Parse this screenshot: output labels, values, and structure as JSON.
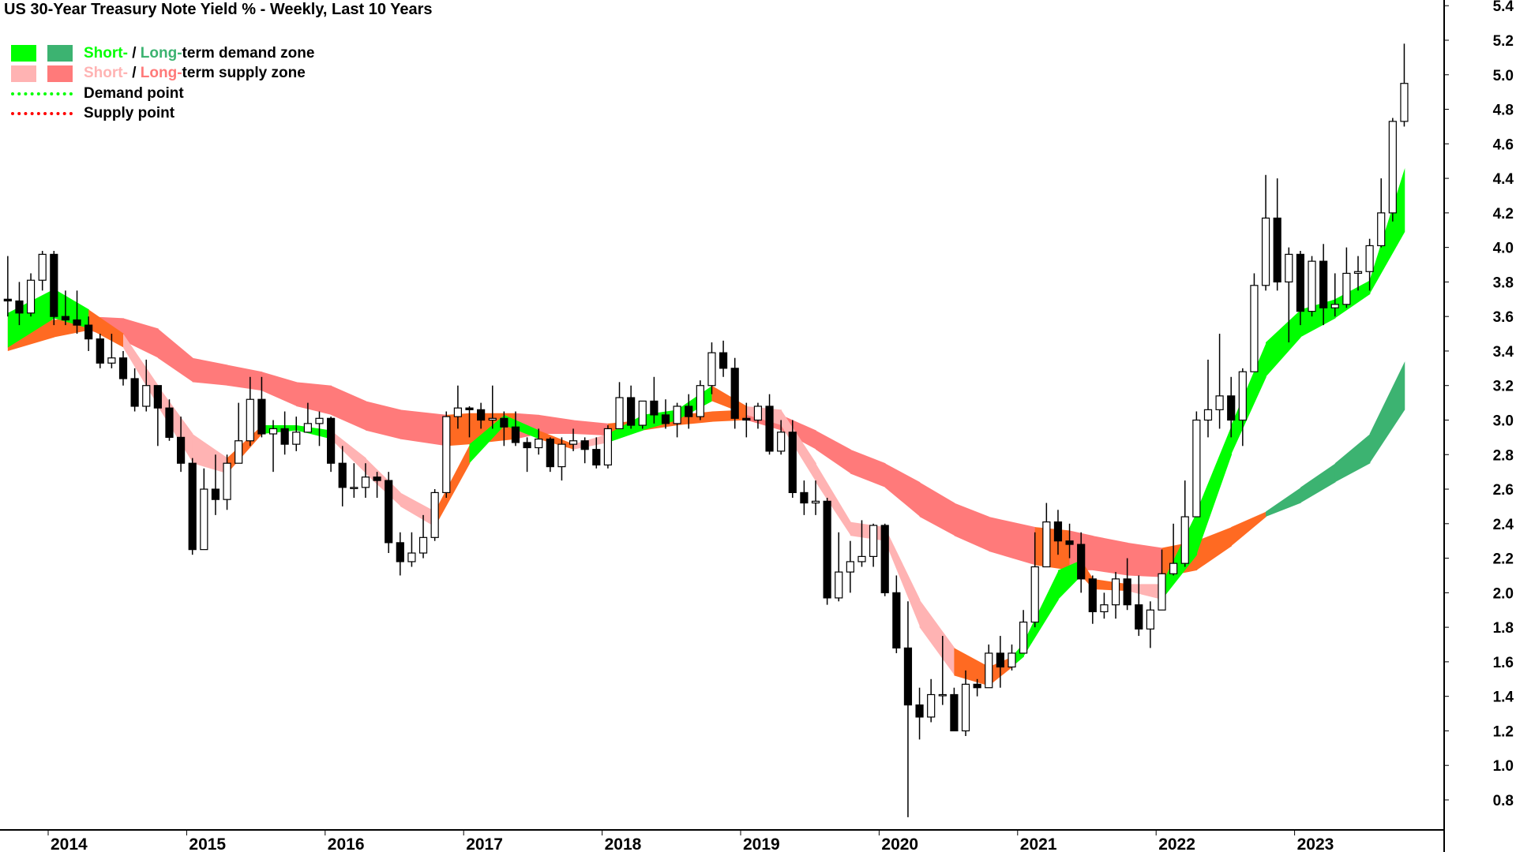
{
  "chart_data": {
    "type": "candlestick",
    "title": "US 30-Year Treasury Note Yield % - Weekly, Last 10 Years",
    "ylim": [
      0.6,
      5.4
    ],
    "yticks": [
      "0.8",
      "1.0",
      "1.2",
      "1.4",
      "1.6",
      "1.8",
      "2.0",
      "2.2",
      "2.4",
      "2.6",
      "2.8",
      "3.0",
      "3.2",
      "3.4",
      "3.6",
      "3.8",
      "4.0",
      "4.2",
      "4.4",
      "4.6",
      "4.8",
      "5.0",
      "5.2",
      "5.4"
    ],
    "xticks": [
      "2014",
      "2015",
      "2016",
      "2017",
      "2018",
      "2019",
      "2020",
      "2021",
      "2022",
      "2023"
    ],
    "grid": false,
    "legend_position": "top-left",
    "legend": {
      "demand_zone": {
        "short": "Short-",
        "sep": " / ",
        "long": "Long-",
        "rest": "term demand zone"
      },
      "supply_zone": {
        "short": "Short-",
        "sep": " / ",
        "long": "Long-",
        "rest": "term supply zone"
      },
      "demand_point": "Demand point",
      "supply_point": "Supply point"
    },
    "colors": {
      "short_demand": "#00ff00",
      "long_demand": "#3cb371",
      "short_supply": "#ffb3b3",
      "long_supply": "#ff7a7a",
      "neutral": "#ff6a22",
      "demand_point": "#00ff00",
      "supply_point": "#ff0000",
      "candle": "#000000"
    },
    "start_month": "2013-09",
    "ohlc": [
      [
        3.7,
        3.95,
        3.6,
        3.69
      ],
      [
        3.69,
        3.8,
        3.55,
        3.62
      ],
      [
        3.62,
        3.85,
        3.6,
        3.81
      ],
      [
        3.81,
        3.98,
        3.75,
        3.96
      ],
      [
        3.96,
        3.98,
        3.55,
        3.6
      ],
      [
        3.6,
        3.75,
        3.55,
        3.58
      ],
      [
        3.58,
        3.75,
        3.5,
        3.55
      ],
      [
        3.55,
        3.6,
        3.4,
        3.47
      ],
      [
        3.47,
        3.5,
        3.3,
        3.33
      ],
      [
        3.33,
        3.5,
        3.3,
        3.36
      ],
      [
        3.36,
        3.4,
        3.2,
        3.24
      ],
      [
        3.24,
        3.3,
        3.05,
        3.08
      ],
      [
        3.08,
        3.35,
        3.05,
        3.2
      ],
      [
        3.2,
        3.2,
        2.85,
        3.07
      ],
      [
        3.07,
        3.12,
        2.88,
        2.9
      ],
      [
        2.9,
        3.02,
        2.7,
        2.75
      ],
      [
        2.75,
        2.78,
        2.22,
        2.25
      ],
      [
        2.25,
        2.72,
        2.25,
        2.6
      ],
      [
        2.6,
        2.8,
        2.45,
        2.54
      ],
      [
        2.54,
        2.8,
        2.48,
        2.75
      ],
      [
        2.75,
        3.1,
        2.75,
        2.88
      ],
      [
        2.88,
        3.25,
        2.85,
        3.12
      ],
      [
        3.12,
        3.25,
        2.9,
        2.92
      ],
      [
        2.92,
        3.0,
        2.7,
        2.95
      ],
      [
        2.95,
        3.05,
        2.8,
        2.86
      ],
      [
        2.86,
        3.02,
        2.82,
        2.93
      ],
      [
        2.93,
        3.1,
        2.93,
        2.98
      ],
      [
        2.98,
        3.05,
        2.85,
        3.01
      ],
      [
        3.01,
        3.02,
        2.7,
        2.75
      ],
      [
        2.75,
        2.85,
        2.5,
        2.61
      ],
      [
        2.61,
        2.75,
        2.55,
        2.61
      ],
      [
        2.61,
        2.75,
        2.55,
        2.67
      ],
      [
        2.67,
        2.7,
        2.55,
        2.65
      ],
      [
        2.65,
        2.7,
        2.23,
        2.29
      ],
      [
        2.29,
        2.35,
        2.1,
        2.18
      ],
      [
        2.18,
        2.35,
        2.15,
        2.23
      ],
      [
        2.23,
        2.45,
        2.2,
        2.32
      ],
      [
        2.32,
        2.6,
        2.3,
        2.58
      ],
      [
        2.58,
        3.05,
        2.55,
        3.02
      ],
      [
        3.02,
        3.2,
        2.95,
        3.07
      ],
      [
        3.07,
        3.08,
        2.9,
        3.06
      ],
      [
        3.06,
        3.1,
        2.95,
        3.0
      ],
      [
        3.0,
        3.2,
        2.95,
        3.01
      ],
      [
        3.01,
        3.05,
        2.85,
        2.96
      ],
      [
        2.96,
        3.05,
        2.85,
        2.87
      ],
      [
        2.87,
        2.9,
        2.7,
        2.84
      ],
      [
        2.84,
        2.95,
        2.8,
        2.89
      ],
      [
        2.89,
        2.9,
        2.7,
        2.73
      ],
      [
        2.73,
        2.9,
        2.65,
        2.86
      ],
      [
        2.86,
        2.95,
        2.82,
        2.88
      ],
      [
        2.88,
        2.9,
        2.75,
        2.83
      ],
      [
        2.83,
        2.9,
        2.72,
        2.74
      ],
      [
        2.74,
        2.97,
        2.72,
        2.95
      ],
      [
        2.95,
        3.22,
        2.95,
        3.13
      ],
      [
        3.13,
        3.2,
        2.95,
        2.97
      ],
      [
        2.97,
        3.1,
        2.95,
        3.11
      ],
      [
        3.11,
        3.25,
        2.98,
        3.03
      ],
      [
        3.03,
        3.12,
        2.95,
        2.98
      ],
      [
        2.98,
        3.1,
        2.9,
        3.08
      ],
      [
        3.08,
        3.15,
        2.95,
        3.02
      ],
      [
        3.02,
        3.23,
        3.0,
        3.2
      ],
      [
        3.2,
        3.45,
        3.15,
        3.39
      ],
      [
        3.39,
        3.46,
        3.25,
        3.3
      ],
      [
        3.3,
        3.36,
        2.95,
        3.01
      ],
      [
        3.01,
        3.1,
        2.9,
        3.0
      ],
      [
        3.0,
        3.1,
        2.95,
        3.08
      ],
      [
        3.08,
        3.15,
        2.8,
        2.82
      ],
      [
        2.82,
        3.0,
        2.8,
        2.93
      ],
      [
        2.93,
        3.0,
        2.55,
        2.58
      ],
      [
        2.58,
        2.65,
        2.45,
        2.52
      ],
      [
        2.52,
        2.65,
        2.45,
        2.53
      ],
      [
        2.53,
        2.55,
        1.93,
        1.97
      ],
      [
        1.97,
        2.35,
        1.95,
        2.12
      ],
      [
        2.12,
        2.3,
        2.0,
        2.18
      ],
      [
        2.18,
        2.42,
        2.15,
        2.21
      ],
      [
        2.21,
        2.4,
        2.15,
        2.39
      ],
      [
        2.39,
        2.4,
        1.98,
        2.0
      ],
      [
        2.0,
        2.1,
        1.65,
        1.68
      ],
      [
        1.68,
        1.95,
        0.7,
        1.35
      ],
      [
        1.35,
        1.45,
        1.15,
        1.28
      ],
      [
        1.28,
        1.5,
        1.25,
        1.41
      ],
      [
        1.41,
        1.75,
        1.35,
        1.41
      ],
      [
        1.41,
        1.45,
        1.2,
        1.2
      ],
      [
        1.2,
        1.55,
        1.17,
        1.47
      ],
      [
        1.47,
        1.5,
        1.4,
        1.45
      ],
      [
        1.45,
        1.7,
        1.45,
        1.65
      ],
      [
        1.65,
        1.75,
        1.45,
        1.57
      ],
      [
        1.57,
        1.7,
        1.55,
        1.65
      ],
      [
        1.65,
        1.9,
        1.65,
        1.83
      ],
      [
        1.83,
        2.35,
        1.8,
        2.15
      ],
      [
        2.15,
        2.52,
        2.15,
        2.41
      ],
      [
        2.41,
        2.48,
        2.22,
        2.3
      ],
      [
        2.3,
        2.4,
        2.2,
        2.28
      ],
      [
        2.28,
        2.35,
        2.0,
        2.08
      ],
      [
        2.08,
        2.1,
        1.82,
        1.89
      ],
      [
        1.89,
        2.0,
        1.85,
        1.93
      ],
      [
        1.93,
        2.12,
        1.85,
        2.08
      ],
      [
        2.08,
        2.2,
        1.9,
        1.93
      ],
      [
        1.93,
        2.1,
        1.75,
        1.79
      ],
      [
        1.79,
        1.95,
        1.68,
        1.9
      ],
      [
        1.9,
        2.25,
        1.9,
        2.11
      ],
      [
        2.11,
        2.4,
        2.1,
        2.17
      ],
      [
        2.17,
        2.65,
        2.15,
        2.44
      ],
      [
        2.44,
        3.05,
        2.44,
        3.0
      ],
      [
        3.0,
        3.35,
        2.9,
        3.06
      ],
      [
        3.06,
        3.5,
        2.95,
        3.14
      ],
      [
        3.14,
        3.25,
        2.9,
        3.0
      ],
      [
        3.0,
        3.3,
        2.85,
        3.28
      ],
      [
        3.28,
        3.85,
        3.28,
        3.78
      ],
      [
        3.78,
        4.42,
        3.75,
        4.17
      ],
      [
        4.17,
        4.4,
        3.75,
        3.8
      ],
      [
        3.8,
        4.0,
        3.45,
        3.96
      ],
      [
        3.96,
        3.98,
        3.55,
        3.63
      ],
      [
        3.63,
        3.95,
        3.6,
        3.92
      ],
      [
        3.92,
        4.02,
        3.55,
        3.65
      ],
      [
        3.65,
        3.85,
        3.6,
        3.67
      ],
      [
        3.67,
        4.0,
        3.65,
        3.85
      ],
      [
        3.85,
        3.95,
        3.75,
        3.86
      ],
      [
        3.86,
        4.05,
        3.75,
        4.01
      ],
      [
        4.01,
        4.4,
        4.0,
        4.2
      ],
      [
        4.2,
        4.75,
        4.15,
        4.73
      ],
      [
        4.73,
        5.18,
        4.7,
        4.95
      ]
    ],
    "short_zone": [
      {
        "d": "2013-09",
        "hi": 3.62,
        "lo": 3.42,
        "state": "demand"
      },
      {
        "d": "2014-01",
        "hi": 3.76,
        "lo": 3.59,
        "state": "demand"
      },
      {
        "d": "2014-04",
        "hi": 3.64,
        "lo": 3.53,
        "state": "neutral"
      },
      {
        "d": "2014-07",
        "hi": 3.5,
        "lo": 3.42,
        "state": "supply"
      },
      {
        "d": "2014-10",
        "hi": 3.2,
        "lo": 3.08,
        "state": "supply"
      },
      {
        "d": "2015-01",
        "hi": 2.92,
        "lo": 2.75,
        "state": "supply"
      },
      {
        "d": "2015-04",
        "hi": 2.78,
        "lo": 2.69,
        "state": "neutral"
      },
      {
        "d": "2015-07",
        "hi": 2.97,
        "lo": 2.92,
        "state": "demand"
      },
      {
        "d": "2015-10",
        "hi": 2.97,
        "lo": 2.94,
        "state": "demand"
      },
      {
        "d": "2016-01",
        "hi": 2.94,
        "lo": 2.89,
        "state": "supply"
      },
      {
        "d": "2016-04",
        "hi": 2.78,
        "lo": 2.69,
        "state": "supply"
      },
      {
        "d": "2016-07",
        "hi": 2.58,
        "lo": 2.5,
        "state": "supply"
      },
      {
        "d": "2016-10",
        "hi": 2.47,
        "lo": 2.38,
        "state": "neutral"
      },
      {
        "d": "2017-01",
        "hi": 2.86,
        "lo": 2.75,
        "state": "demand"
      },
      {
        "d": "2017-04",
        "hi": 3.03,
        "lo": 2.97,
        "state": "demand"
      },
      {
        "d": "2017-07",
        "hi": 2.94,
        "lo": 2.89,
        "state": "neutral"
      },
      {
        "d": "2017-10",
        "hi": 2.86,
        "lo": 2.83,
        "state": "supply"
      },
      {
        "d": "2018-01",
        "hi": 2.92,
        "lo": 2.87,
        "state": "demand"
      },
      {
        "d": "2018-04",
        "hi": 3.03,
        "lo": 2.94,
        "state": "demand"
      },
      {
        "d": "2018-07",
        "hi": 3.06,
        "lo": 3.0,
        "state": "demand"
      },
      {
        "d": "2018-10",
        "hi": 3.2,
        "lo": 3.11,
        "state": "neutral"
      },
      {
        "d": "2019-01",
        "hi": 3.08,
        "lo": 3.03,
        "state": "supply"
      },
      {
        "d": "2019-04",
        "hi": 3.06,
        "lo": 2.97,
        "state": "supply"
      },
      {
        "d": "2019-07",
        "hi": 2.75,
        "lo": 2.64,
        "state": "supply"
      },
      {
        "d": "2019-10",
        "hi": 2.41,
        "lo": 2.33,
        "state": "supply"
      },
      {
        "d": "2020-01",
        "hi": 2.38,
        "lo": 2.3,
        "state": "supply"
      },
      {
        "d": "2020-04",
        "hi": 1.96,
        "lo": 1.8,
        "state": "supply"
      },
      {
        "d": "2020-07",
        "hi": 1.68,
        "lo": 1.52,
        "state": "neutral"
      },
      {
        "d": "2020-10",
        "hi": 1.57,
        "lo": 1.46,
        "state": "neutral"
      },
      {
        "d": "2020-12",
        "hi": 1.63,
        "lo": 1.57,
        "state": "demand"
      },
      {
        "d": "2021-01",
        "hi": 1.71,
        "lo": 1.63,
        "state": "demand"
      },
      {
        "d": "2021-04",
        "hi": 2.13,
        "lo": 1.96,
        "state": "demand"
      },
      {
        "d": "2021-06",
        "hi": 2.19,
        "lo": 2.1,
        "state": "neutral"
      },
      {
        "d": "2021-07",
        "hi": 2.08,
        "lo": 2.02,
        "state": "neutral"
      },
      {
        "d": "2021-10",
        "hi": 2.05,
        "lo": 2.01,
        "state": "supply"
      },
      {
        "d": "2022-01",
        "hi": 2.05,
        "lo": 1.96,
        "state": "demand"
      },
      {
        "d": "2022-04",
        "hi": 2.47,
        "lo": 2.22,
        "state": "demand"
      },
      {
        "d": "2022-07",
        "hi": 2.97,
        "lo": 2.8,
        "state": "demand"
      },
      {
        "d": "2022-10",
        "hi": 3.45,
        "lo": 3.25,
        "state": "demand"
      },
      {
        "d": "2023-01",
        "hi": 3.64,
        "lo": 3.48,
        "state": "demand"
      },
      {
        "d": "2023-04",
        "hi": 3.7,
        "lo": 3.59,
        "state": "demand"
      },
      {
        "d": "2023-07",
        "hi": 3.81,
        "lo": 3.73,
        "state": "demand"
      },
      {
        "d": "2023-10",
        "hi": 4.46,
        "lo": 4.09,
        "state": "demand"
      }
    ],
    "long_zone": [
      {
        "d": "2013-09",
        "hi": 3.6,
        "lo": 3.4,
        "state": "neutral"
      },
      {
        "d": "2014-01",
        "hi": 3.58,
        "lo": 3.48,
        "state": "neutral"
      },
      {
        "d": "2014-04",
        "hi": 3.6,
        "lo": 3.52,
        "state": "supply"
      },
      {
        "d": "2014-07",
        "hi": 3.59,
        "lo": 3.46,
        "state": "supply"
      },
      {
        "d": "2014-10",
        "hi": 3.53,
        "lo": 3.36,
        "state": "supply"
      },
      {
        "d": "2015-01",
        "hi": 3.36,
        "lo": 3.22,
        "state": "supply"
      },
      {
        "d": "2015-04",
        "hi": 3.32,
        "lo": 3.2,
        "state": "supply"
      },
      {
        "d": "2015-07",
        "hi": 3.28,
        "lo": 3.17,
        "state": "supply"
      },
      {
        "d": "2015-10",
        "hi": 3.22,
        "lo": 3.08,
        "state": "supply"
      },
      {
        "d": "2016-01",
        "hi": 3.2,
        "lo": 3.03,
        "state": "supply"
      },
      {
        "d": "2016-04",
        "hi": 3.11,
        "lo": 2.94,
        "state": "supply"
      },
      {
        "d": "2016-07",
        "hi": 3.06,
        "lo": 2.89,
        "state": "supply"
      },
      {
        "d": "2016-11",
        "hi": 3.03,
        "lo": 2.85,
        "state": "neutral"
      },
      {
        "d": "2017-01",
        "hi": 3.04,
        "lo": 2.86,
        "state": "neutral"
      },
      {
        "d": "2017-05",
        "hi": 3.04,
        "lo": 2.89,
        "state": "supply"
      },
      {
        "d": "2017-07",
        "hi": 3.03,
        "lo": 2.92,
        "state": "supply"
      },
      {
        "d": "2017-10",
        "hi": 3.0,
        "lo": 2.92,
        "state": "supply"
      },
      {
        "d": "2018-01",
        "hi": 2.98,
        "lo": 2.91,
        "state": "neutral"
      },
      {
        "d": "2018-04",
        "hi": 3.0,
        "lo": 2.94,
        "state": "neutral"
      },
      {
        "d": "2018-07",
        "hi": 3.03,
        "lo": 2.97,
        "state": "neutral"
      },
      {
        "d": "2018-10",
        "hi": 3.05,
        "lo": 2.99,
        "state": "neutral"
      },
      {
        "d": "2019-01",
        "hi": 3.06,
        "lo": 3.0,
        "state": "supply"
      },
      {
        "d": "2019-04",
        "hi": 3.03,
        "lo": 2.94,
        "state": "supply"
      },
      {
        "d": "2019-07",
        "hi": 2.94,
        "lo": 2.83,
        "state": "supply"
      },
      {
        "d": "2019-10",
        "hi": 2.83,
        "lo": 2.69,
        "state": "supply"
      },
      {
        "d": "2020-01",
        "hi": 2.75,
        "lo": 2.61,
        "state": "supply"
      },
      {
        "d": "2020-04",
        "hi": 2.64,
        "lo": 2.44,
        "state": "supply"
      },
      {
        "d": "2020-07",
        "hi": 2.52,
        "lo": 2.33,
        "state": "supply"
      },
      {
        "d": "2020-10",
        "hi": 2.44,
        "lo": 2.24,
        "state": "supply"
      },
      {
        "d": "2021-02",
        "hi": 2.38,
        "lo": 2.16,
        "state": "neutral"
      },
      {
        "d": "2021-05",
        "hi": 2.36,
        "lo": 2.13,
        "state": "supply"
      },
      {
        "d": "2021-07",
        "hi": 2.33,
        "lo": 2.13,
        "state": "supply"
      },
      {
        "d": "2021-10",
        "hi": 2.29,
        "lo": 2.1,
        "state": "supply"
      },
      {
        "d": "2022-01",
        "hi": 2.26,
        "lo": 2.09,
        "state": "neutral"
      },
      {
        "d": "2022-04",
        "hi": 2.3,
        "lo": 2.13,
        "state": "neutral"
      },
      {
        "d": "2022-07",
        "hi": 2.38,
        "lo": 2.27,
        "state": "neutral"
      },
      {
        "d": "2022-10",
        "hi": 2.47,
        "lo": 2.44,
        "state": "demand"
      },
      {
        "d": "2023-01",
        "hi": 2.61,
        "lo": 2.52,
        "state": "demand"
      },
      {
        "d": "2023-04",
        "hi": 2.75,
        "lo": 2.64,
        "state": "demand"
      },
      {
        "d": "2023-07",
        "hi": 2.92,
        "lo": 2.75,
        "state": "demand"
      },
      {
        "d": "2023-10",
        "hi": 3.34,
        "lo": 3.06,
        "state": "demand"
      }
    ]
  }
}
